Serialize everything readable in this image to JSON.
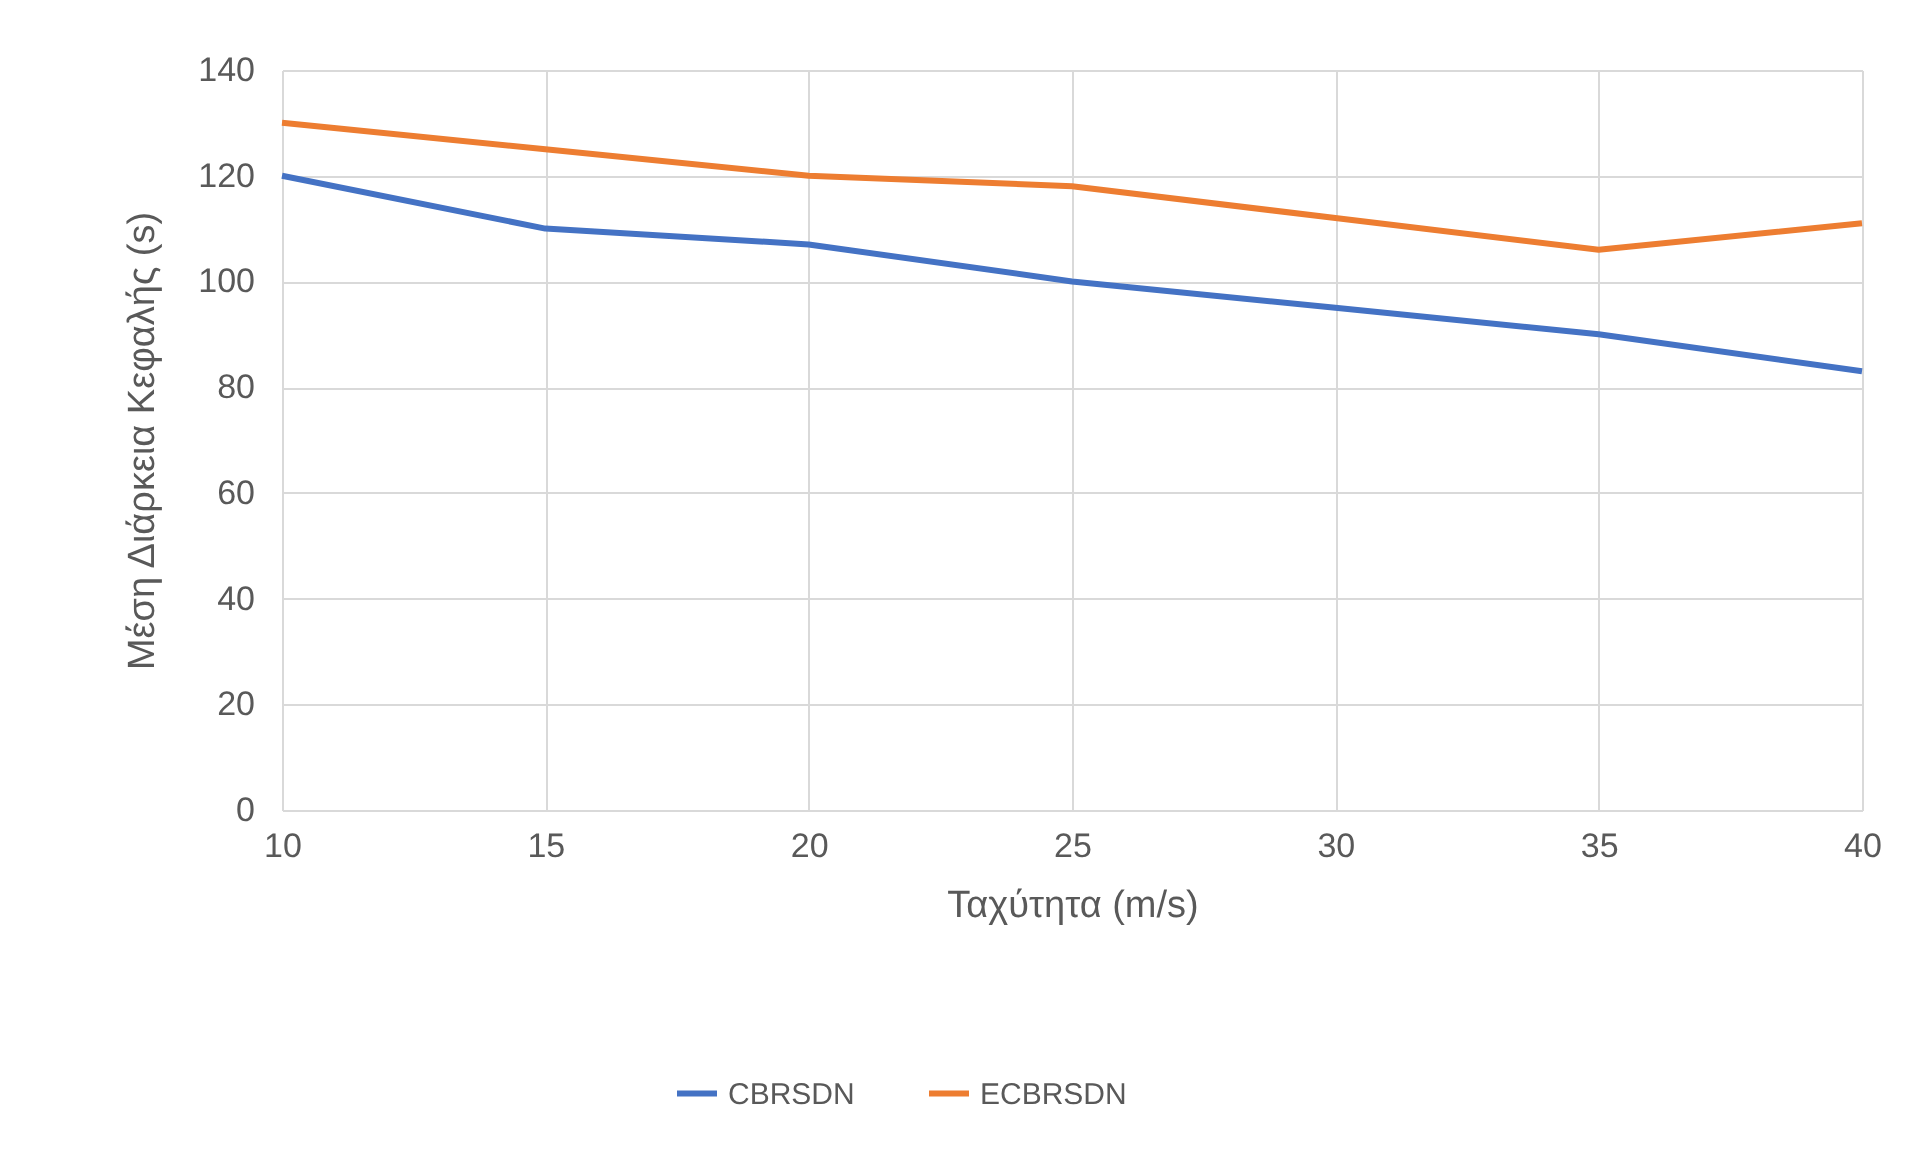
{
  "chart_data": {
    "type": "line",
    "xlabel": "Ταχύτητα (m/s)",
    "ylabel": "Μέση Διάρκεια Κεφαλής (s)",
    "x": [
      10,
      15,
      20,
      25,
      30,
      35,
      40
    ],
    "series": [
      {
        "name": "CBRSDN",
        "color": "#4472c4",
        "values": [
          120,
          110,
          107,
          100,
          95,
          90,
          83
        ]
      },
      {
        "name": "ECBRSDN",
        "color": "#ed7d31",
        "values": [
          130,
          125,
          120,
          118,
          112,
          106,
          111
        ]
      }
    ],
    "xlim": [
      10,
      40
    ],
    "xticks": [
      10,
      15,
      20,
      25,
      30,
      35,
      40
    ],
    "ylim": [
      0,
      140
    ],
    "yticks": [
      0,
      20,
      40,
      60,
      80,
      100,
      120,
      140
    ],
    "grid": true,
    "legend": "bottom",
    "marker": "none",
    "line_style": "solid"
  }
}
